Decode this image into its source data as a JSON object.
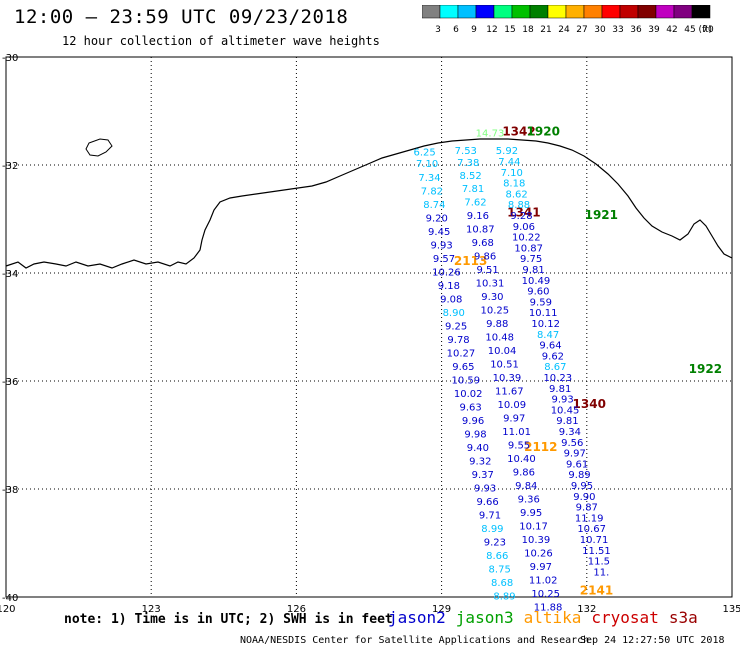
{
  "header": {
    "title": "12:00 – 23:59 UTC 09/23/2018",
    "subtitle": "12 hour collection of altimeter wave heights"
  },
  "legend": {
    "unit": "(ft)",
    "labels": [
      "3",
      "6",
      "9",
      "12",
      "15",
      "18",
      "21",
      "24",
      "27",
      "30",
      "33",
      "36",
      "39",
      "42",
      "45",
      "70"
    ],
    "colors": [
      "#808080",
      "#00ffff",
      "#00c0ff",
      "#0000ff",
      "#00ff80",
      "#00c000",
      "#008000",
      "#ffff00",
      "#ffb000",
      "#ff8000",
      "#ff0000",
      "#c00000",
      "#800000",
      "#c000c0",
      "#800080",
      "#000000"
    ]
  },
  "axes": {
    "lat_labels": [
      "-30",
      "-32",
      "-34",
      "-36",
      "-38",
      "-40"
    ],
    "lon_labels": [
      "120",
      "123",
      "126",
      "129",
      "132",
      "135"
    ]
  },
  "footer": {
    "note": "note: 1) Time is in UTC; 2) SWH is in feet",
    "satellites": [
      {
        "name": "jason2",
        "color": "#0000cc"
      },
      {
        "name": "jason3",
        "color": "#00a000"
      },
      {
        "name": "altika",
        "color": "#ff9900"
      },
      {
        "name": "cryosat",
        "color": "#cc0000"
      },
      {
        "name": "s3a",
        "color": "#990000"
      }
    ],
    "credit": "NOAA/NESDIS Center for Satellite Applications and Research",
    "timestamp": "Sep 24 12:27:50 UTC 2018"
  },
  "map": {
    "extent": {
      "lon_min": 120,
      "lon_max": 135,
      "lat_min": -40,
      "lat_max": -30
    },
    "time_labels": [
      {
        "text": "1342",
        "lon": 130.6,
        "lat": -31.45,
        "color": "#800000"
      },
      {
        "text": "1920",
        "lon": 131.1,
        "lat": -31.45,
        "color": "#008000"
      },
      {
        "text": "1341",
        "lon": 130.7,
        "lat": -32.95,
        "color": "#800000"
      },
      {
        "text": "1921",
        "lon": 132.3,
        "lat": -33.0,
        "color": "#008000"
      },
      {
        "text": "2113",
        "lon": 129.6,
        "lat": -33.85,
        "color": "#ff9900"
      },
      {
        "text": "1922",
        "lon": 134.45,
        "lat": -35.85,
        "color": "#008000"
      },
      {
        "text": "1340",
        "lon": 132.05,
        "lat": -36.5,
        "color": "#800000"
      },
      {
        "text": "2112",
        "lon": 131.05,
        "lat": -37.3,
        "color": "#ff9900"
      },
      {
        "text": "2141",
        "lon": 132.2,
        "lat": -39.95,
        "color": "#ff9900"
      }
    ],
    "tracks": [
      {
        "satellite": "jason3",
        "points": [
          {
            "lon": 130.0,
            "lat": -31.47,
            "v": "14.73",
            "color": "#80ff80"
          }
        ]
      },
      {
        "satellite": "cryosat_west",
        "points": [
          {
            "lon": 128.65,
            "lat": -31.82,
            "v": "6.25",
            "color": "#00c0ff"
          },
          {
            "lon": 128.7,
            "lat": -32.04,
            "v": "7.10",
            "color": "#00c0ff"
          },
          {
            "lon": 128.75,
            "lat": -32.3,
            "v": "7.34",
            "color": "#00c0ff"
          },
          {
            "lon": 128.8,
            "lat": -32.55,
            "v": "7.82",
            "color": "#00c0ff"
          },
          {
            "lon": 128.85,
            "lat": -32.8,
            "v": "8.74",
            "color": "#00c0ff"
          },
          {
            "lon": 128.9,
            "lat": -33.05,
            "v": "9.20",
            "color": "#0000cc"
          },
          {
            "lon": 128.95,
            "lat": -33.3,
            "v": "9.45",
            "color": "#0000cc"
          },
          {
            "lon": 129.0,
            "lat": -33.55,
            "v": "9.93",
            "color": "#0000cc"
          },
          {
            "lon": 129.05,
            "lat": -33.8,
            "v": "9.57",
            "color": "#0000cc"
          },
          {
            "lon": 129.1,
            "lat": -34.05,
            "v": "10.26",
            "color": "#0000cc"
          },
          {
            "lon": 129.15,
            "lat": -34.3,
            "v": "9.18",
            "color": "#0000cc"
          },
          {
            "lon": 129.2,
            "lat": -34.55,
            "v": "9.08",
            "color": "#0000cc"
          },
          {
            "lon": 129.25,
            "lat": -34.8,
            "v": "8.90",
            "color": "#00c0ff"
          },
          {
            "lon": 129.3,
            "lat": -35.05,
            "v": "9.25",
            "color": "#0000cc"
          },
          {
            "lon": 129.35,
            "lat": -35.3,
            "v": "9.78",
            "color": "#0000cc"
          },
          {
            "lon": 129.4,
            "lat": -35.55,
            "v": "10.27",
            "color": "#0000cc"
          },
          {
            "lon": 129.45,
            "lat": -35.8,
            "v": "9.65",
            "color": "#0000cc"
          },
          {
            "lon": 129.5,
            "lat": -36.05,
            "v": "10.59",
            "color": "#0000cc"
          },
          {
            "lon": 129.55,
            "lat": -36.3,
            "v": "10.02",
            "color": "#0000cc"
          },
          {
            "lon": 129.6,
            "lat": -36.55,
            "v": "9.63",
            "color": "#0000cc"
          },
          {
            "lon": 129.65,
            "lat": -36.8,
            "v": "9.96",
            "color": "#0000cc"
          },
          {
            "lon": 129.7,
            "lat": -37.05,
            "v": "9.98",
            "color": "#0000cc"
          },
          {
            "lon": 129.75,
            "lat": -37.3,
            "v": "9.40",
            "color": "#0000cc"
          },
          {
            "lon": 129.8,
            "lat": -37.55,
            "v": "9.32",
            "color": "#0000cc"
          },
          {
            "lon": 129.85,
            "lat": -37.8,
            "v": "9.37",
            "color": "#0000cc"
          },
          {
            "lon": 129.9,
            "lat": -38.05,
            "v": "9.93",
            "color": "#0000cc"
          },
          {
            "lon": 129.95,
            "lat": -38.3,
            "v": "9.66",
            "color": "#0000cc"
          },
          {
            "lon": 130.0,
            "lat": -38.55,
            "v": "9.71",
            "color": "#0000cc"
          },
          {
            "lon": 130.05,
            "lat": -38.8,
            "v": "8.99",
            "color": "#00c0ff"
          },
          {
            "lon": 130.1,
            "lat": -39.05,
            "v": "9.23",
            "color": "#0000cc"
          },
          {
            "lon": 130.15,
            "lat": -39.3,
            "v": "8.66",
            "color": "#00c0ff"
          },
          {
            "lon": 130.2,
            "lat": -39.55,
            "v": "8.75",
            "color": "#00c0ff"
          },
          {
            "lon": 130.25,
            "lat": -39.8,
            "v": "8.68",
            "color": "#00c0ff"
          },
          {
            "lon": 130.3,
            "lat": -40.05,
            "v": "8.89",
            "color": "#00c0ff"
          }
        ]
      },
      {
        "satellite": "altika",
        "points": [
          {
            "lon": 129.5,
            "lat": -31.8,
            "v": "7.53",
            "color": "#00c0ff"
          },
          {
            "lon": 129.55,
            "lat": -32.02,
            "v": "7.38",
            "color": "#00c0ff"
          },
          {
            "lon": 129.6,
            "lat": -32.26,
            "v": "8.52",
            "color": "#00c0ff"
          },
          {
            "lon": 129.65,
            "lat": -32.5,
            "v": "7.81",
            "color": "#00c0ff"
          },
          {
            "lon": 129.7,
            "lat": -32.75,
            "v": "7.62",
            "color": "#00c0ff"
          },
          {
            "lon": 129.75,
            "lat": -33.0,
            "v": "9.16",
            "color": "#0000cc"
          },
          {
            "lon": 129.8,
            "lat": -33.25,
            "v": "10.87",
            "color": "#0000cc"
          },
          {
            "lon": 129.85,
            "lat": -33.5,
            "v": "9.68",
            "color": "#0000cc"
          },
          {
            "lon": 129.9,
            "lat": -33.75,
            "v": "9.86",
            "color": "#0000cc"
          },
          {
            "lon": 129.95,
            "lat": -34.0,
            "v": "9.51",
            "color": "#0000cc"
          },
          {
            "lon": 130.0,
            "lat": -34.25,
            "v": "10.31",
            "color": "#0000cc"
          },
          {
            "lon": 130.05,
            "lat": -34.5,
            "v": "9.30",
            "color": "#0000cc"
          },
          {
            "lon": 130.1,
            "lat": -34.75,
            "v": "10.25",
            "color": "#0000cc"
          },
          {
            "lon": 130.15,
            "lat": -35.0,
            "v": "9.88",
            "color": "#0000cc"
          },
          {
            "lon": 130.2,
            "lat": -35.25,
            "v": "10.48",
            "color": "#0000cc"
          },
          {
            "lon": 130.25,
            "lat": -35.5,
            "v": "10.04",
            "color": "#0000cc"
          },
          {
            "lon": 130.3,
            "lat": -35.75,
            "v": "10.51",
            "color": "#0000cc"
          },
          {
            "lon": 130.35,
            "lat": -36.0,
            "v": "10.39",
            "color": "#0000cc"
          },
          {
            "lon": 130.4,
            "lat": -36.25,
            "v": "11.67",
            "color": "#0000cc"
          },
          {
            "lon": 130.45,
            "lat": -36.5,
            "v": "10.09",
            "color": "#0000cc"
          },
          {
            "lon": 130.5,
            "lat": -36.75,
            "v": "9.97",
            "color": "#0000cc"
          },
          {
            "lon": 130.55,
            "lat": -37.0,
            "v": "11.01",
            "color": "#0000cc"
          },
          {
            "lon": 130.6,
            "lat": -37.25,
            "v": "9.55",
            "color": "#0000cc"
          },
          {
            "lon": 130.65,
            "lat": -37.5,
            "v": "10.40",
            "color": "#0000cc"
          },
          {
            "lon": 130.7,
            "lat": -37.75,
            "v": "9.86",
            "color": "#0000cc"
          },
          {
            "lon": 130.75,
            "lat": -38.0,
            "v": "9.84",
            "color": "#0000cc"
          },
          {
            "lon": 130.8,
            "lat": -38.25,
            "v": "9.36",
            "color": "#0000cc"
          },
          {
            "lon": 130.85,
            "lat": -38.5,
            "v": "9.95",
            "color": "#0000cc"
          },
          {
            "lon": 130.9,
            "lat": -38.75,
            "v": "10.17",
            "color": "#0000cc"
          },
          {
            "lon": 130.95,
            "lat": -39.0,
            "v": "10.39",
            "color": "#0000cc"
          },
          {
            "lon": 131.0,
            "lat": -39.25,
            "v": "10.26",
            "color": "#0000cc"
          },
          {
            "lon": 131.05,
            "lat": -39.5,
            "v": "9.97",
            "color": "#0000cc"
          },
          {
            "lon": 131.1,
            "lat": -39.75,
            "v": "11.02",
            "color": "#0000cc"
          },
          {
            "lon": 131.15,
            "lat": -40.0,
            "v": "10.25",
            "color": "#0000cc"
          },
          {
            "lon": 131.2,
            "lat": -40.25,
            "v": "11.88",
            "color": "#0000cc"
          }
        ]
      },
      {
        "satellite": "s3a",
        "points": [
          {
            "lon": 130.35,
            "lat": -31.8,
            "v": "5.92",
            "color": "#00c0ff"
          },
          {
            "lon": 130.4,
            "lat": -32.0,
            "v": "7.44",
            "color": "#00c0ff"
          },
          {
            "lon": 130.45,
            "lat": -32.2,
            "v": "7.10",
            "color": "#00c0ff"
          },
          {
            "lon": 130.5,
            "lat": -32.4,
            "v": "8.18",
            "color": "#00c0ff"
          },
          {
            "lon": 130.55,
            "lat": -32.6,
            "v": "8.62",
            "color": "#00c0ff"
          },
          {
            "lon": 130.6,
            "lat": -32.8,
            "v": "8.88",
            "color": "#00c0ff"
          },
          {
            "lon": 130.65,
            "lat": -33.0,
            "v": "9.28",
            "color": "#0000cc"
          },
          {
            "lon": 130.7,
            "lat": -33.2,
            "v": "9.06",
            "color": "#0000cc"
          },
          {
            "lon": 130.75,
            "lat": -33.4,
            "v": "10.22",
            "color": "#0000cc"
          },
          {
            "lon": 130.8,
            "lat": -33.6,
            "v": "10.87",
            "color": "#0000cc"
          },
          {
            "lon": 130.85,
            "lat": -33.8,
            "v": "9.75",
            "color": "#0000cc"
          },
          {
            "lon": 130.9,
            "lat": -34.0,
            "v": "9.81",
            "color": "#0000cc"
          },
          {
            "lon": 130.95,
            "lat": -34.2,
            "v": "10.49",
            "color": "#0000cc"
          },
          {
            "lon": 131.0,
            "lat": -34.4,
            "v": "9.60",
            "color": "#0000cc"
          },
          {
            "lon": 131.05,
            "lat": -34.6,
            "v": "9.59",
            "color": "#0000cc"
          },
          {
            "lon": 131.1,
            "lat": -34.8,
            "v": "10.11",
            "color": "#0000cc"
          },
          {
            "lon": 131.15,
            "lat": -35.0,
            "v": "10.12",
            "color": "#0000cc"
          },
          {
            "lon": 131.2,
            "lat": -35.2,
            "v": "8.47",
            "color": "#00c0ff"
          },
          {
            "lon": 131.25,
            "lat": -35.4,
            "v": "9.64",
            "color": "#0000cc"
          },
          {
            "lon": 131.3,
            "lat": -35.6,
            "v": "9.62",
            "color": "#0000cc"
          },
          {
            "lon": 131.35,
            "lat": -35.8,
            "v": "8.67",
            "color": "#00c0ff"
          },
          {
            "lon": 131.4,
            "lat": -36.0,
            "v": "10.23",
            "color": "#0000cc"
          },
          {
            "lon": 131.45,
            "lat": -36.2,
            "v": "9.81",
            "color": "#0000cc"
          },
          {
            "lon": 131.5,
            "lat": -36.4,
            "v": "9.93",
            "color": "#0000cc"
          },
          {
            "lon": 131.55,
            "lat": -36.6,
            "v": "10.45",
            "color": "#0000cc"
          },
          {
            "lon": 131.6,
            "lat": -36.8,
            "v": "9.81",
            "color": "#0000cc"
          },
          {
            "lon": 131.65,
            "lat": -37.0,
            "v": "9.34",
            "color": "#0000cc"
          },
          {
            "lon": 131.7,
            "lat": -37.2,
            "v": "9.56",
            "color": "#0000cc"
          },
          {
            "lon": 131.75,
            "lat": -37.4,
            "v": "9.97",
            "color": "#0000cc"
          },
          {
            "lon": 131.8,
            "lat": -37.6,
            "v": "9.61",
            "color": "#0000cc"
          },
          {
            "lon": 131.85,
            "lat": -37.8,
            "v": "9.89",
            "color": "#0000cc"
          },
          {
            "lon": 131.9,
            "lat": -38.0,
            "v": "9.95",
            "color": "#0000cc"
          },
          {
            "lon": 131.95,
            "lat": -38.2,
            "v": "9.90",
            "color": "#0000cc"
          },
          {
            "lon": 132.0,
            "lat": -38.4,
            "v": "9.87",
            "color": "#0000cc"
          },
          {
            "lon": 132.05,
            "lat": -38.6,
            "v": "11.19",
            "color": "#0000cc"
          },
          {
            "lon": 132.1,
            "lat": -38.8,
            "v": "10.67",
            "color": "#0000cc"
          },
          {
            "lon": 132.15,
            "lat": -39.0,
            "v": "10.71",
            "color": "#0000cc"
          },
          {
            "lon": 132.2,
            "lat": -39.2,
            "v": "11.51",
            "color": "#0000cc"
          },
          {
            "lon": 132.25,
            "lat": -39.4,
            "v": "11.5",
            "color": "#0000cc"
          },
          {
            "lon": 132.3,
            "lat": -39.6,
            "v": "11.",
            "color": "#0000cc"
          }
        ]
      }
    ]
  }
}
